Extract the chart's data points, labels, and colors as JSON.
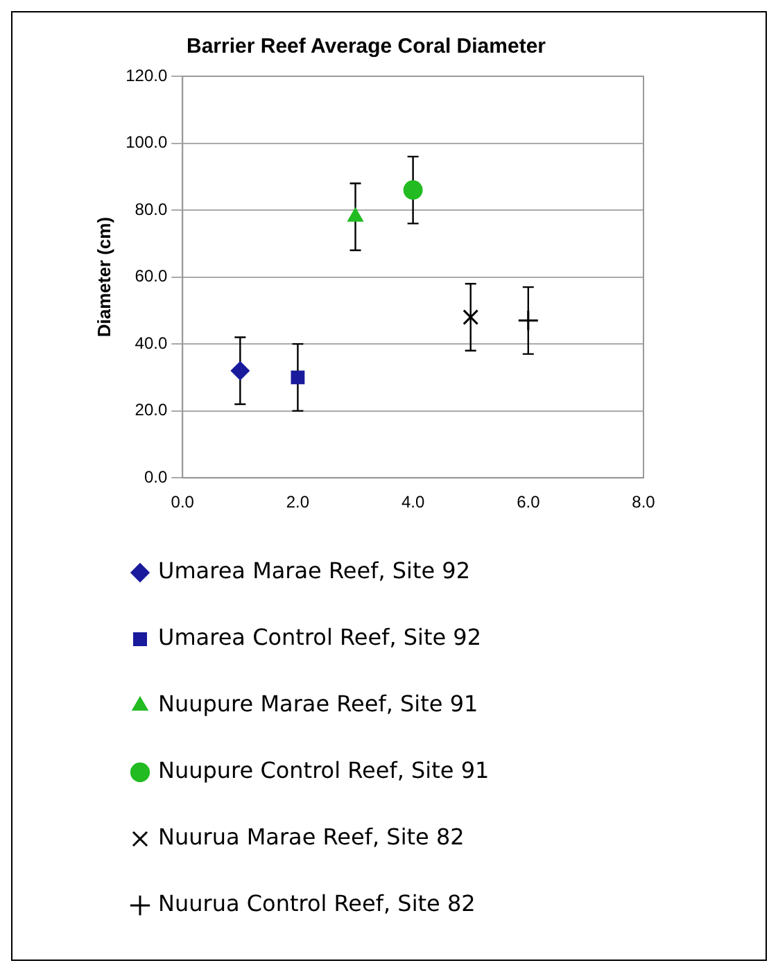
{
  "chart_data": {
    "type": "scatter",
    "title": "Barrier Reef Average Coral Diameter",
    "ylabel": "Diameter (cm)",
    "xlim": [
      0,
      8
    ],
    "xticks": [
      {
        "value": 0,
        "label": "0.0"
      },
      {
        "value": 2,
        "label": "2.0"
      },
      {
        "value": 4,
        "label": "4.0"
      },
      {
        "value": 6,
        "label": "6.0"
      },
      {
        "value": 8,
        "label": "8.0"
      }
    ],
    "ylim": [
      0,
      120
    ],
    "yticks": [
      {
        "value": 0,
        "label": "0.0"
      },
      {
        "value": 20,
        "label": "20.0"
      },
      {
        "value": 40,
        "label": "40.0"
      },
      {
        "value": 60,
        "label": "60.0"
      },
      {
        "value": 80,
        "label": "80.0"
      },
      {
        "value": 100,
        "label": "100.0"
      },
      {
        "value": 120,
        "label": "120.0"
      }
    ],
    "grid": "y",
    "legend": "bottom",
    "series": [
      {
        "name": "Umarea Marae Reef, Site 92",
        "color": "#1a1a9c",
        "marker": "diamond",
        "x": [
          1
        ],
        "values": [
          32
        ],
        "errors": [
          10
        ]
      },
      {
        "name": "Umarea Control Reef, Site 92",
        "color": "#1a1a9c",
        "marker": "square",
        "x": [
          2
        ],
        "values": [
          30
        ],
        "errors": [
          10
        ]
      },
      {
        "name": "Nuupure Marae Reef, Site 91",
        "color": "#22bb22",
        "marker": "triangle",
        "x": [
          3
        ],
        "values": [
          78
        ],
        "errors": [
          10
        ]
      },
      {
        "name": "Nuupure Control Reef, Site 91",
        "color": "#22bb22",
        "marker": "circle",
        "x": [
          4
        ],
        "values": [
          86
        ],
        "errors": [
          10
        ]
      },
      {
        "name": "Nuurua Marae Reef, Site 82",
        "color": "#000000",
        "marker": "cross",
        "x": [
          5
        ],
        "values": [
          48
        ],
        "errors": [
          10
        ]
      },
      {
        "name": "Nuurua Control Reef, Site 82",
        "color": "#000000",
        "marker": "plus",
        "x": [
          6
        ],
        "values": [
          47
        ],
        "errors": [
          10
        ]
      }
    ]
  }
}
